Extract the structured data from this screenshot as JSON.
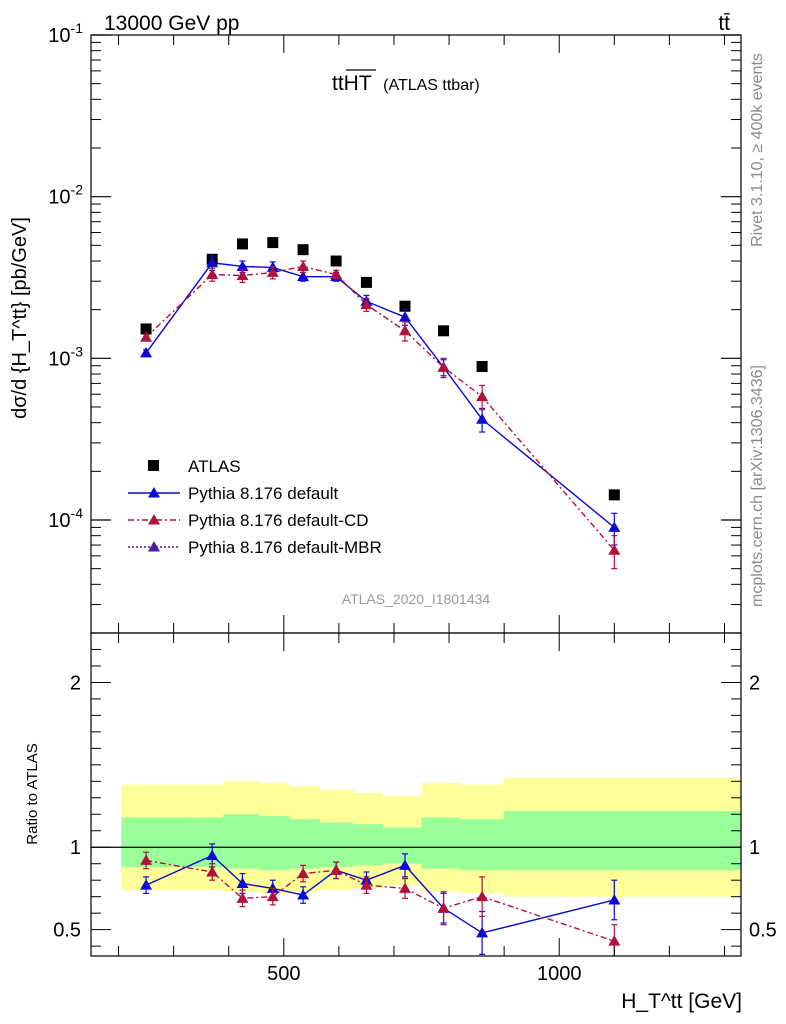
{
  "header": {
    "energy_label": "13000 GeV pp",
    "process_label": "tt̄",
    "plot_title": "ttHT",
    "plot_title_suffix": "(ATLAS ttbar)",
    "ylabel": "dσ/d {H_T^tt} [pb/GeV]",
    "ratio_ylabel": "Ratio to ATLAS",
    "xlabel": "H_T^tt [GeV]",
    "rivet_label": "Rivet 3.1.10, ≥ 400k events",
    "mcplots_label": "mcplots.cern.ch [arXiv:1306.3436]",
    "analysis_label": "ATLAS_2020_I1801434"
  },
  "colors": {
    "atlas": "#000000",
    "default": "#0a0ad2",
    "cd": "#b0123c",
    "mbr": "#4a1aa8",
    "band_outer": "#ffff99",
    "band_inner": "#99ff99"
  },
  "chart_data": [
    {
      "type": "scatter",
      "scale": "log",
      "xlim": [
        150,
        1330
      ],
      "ylim": [
        2e-05,
        0.1
      ],
      "y_ticks": [
        "10^-4",
        "10^-3",
        "10^-2",
        "10^-1"
      ],
      "legend_position": "middle-left",
      "series": [
        {
          "name": "ATLAS",
          "style": "square",
          "x": [
            250,
            370,
            425,
            480,
            535,
            595,
            650,
            720,
            790,
            860,
            1100
          ],
          "y": [
            0.00152,
            0.0041,
            0.0051,
            0.0052,
            0.0047,
            0.004,
            0.00295,
            0.0021,
            0.00148,
            0.00089,
            0.000143
          ]
        },
        {
          "name": "Pythia 8.176 default",
          "style": "solid",
          "x": [
            250,
            370,
            425,
            480,
            535,
            595,
            650,
            720,
            790,
            860,
            1100
          ],
          "y": [
            0.00108,
            0.0039,
            0.0037,
            0.00365,
            0.0032,
            0.0032,
            0.00225,
            0.0018,
            0.00088,
            0.00042,
            9e-05
          ],
          "err": [
            5e-05,
            0.0004,
            0.0003,
            0.0003,
            0.0002,
            0.0002,
            0.0002,
            0.0002,
            0.0001,
            7e-05,
            2e-05
          ]
        },
        {
          "name": "Pythia 8.176 default-CD",
          "style": "dashdot",
          "x": [
            250,
            370,
            425,
            480,
            535,
            595,
            650,
            720,
            790,
            860,
            1100
          ],
          "y": [
            0.00135,
            0.0033,
            0.00325,
            0.0034,
            0.0037,
            0.0033,
            0.00215,
            0.00148,
            0.00088,
            0.00058,
            6.5e-05
          ],
          "err": [
            6e-05,
            0.0003,
            0.0003,
            0.0003,
            0.0003,
            0.0002,
            0.0002,
            0.0002,
            0.00012,
            0.0001,
            1.5e-05
          ]
        },
        {
          "name": "Pythia 8.176 default-MBR",
          "style": "dotted",
          "x": [],
          "y": []
        }
      ]
    },
    {
      "type": "scatter",
      "ylim": [
        0.34,
        2.3
      ],
      "y_ticks": [
        0.5,
        1,
        2
      ],
      "x_ticks": [
        500,
        1000
      ],
      "bands": {
        "edges": [
          205,
          335,
          390,
          455,
          510,
          565,
          625,
          680,
          750,
          820,
          900,
          1330
        ],
        "outer_low": [
          0.74,
          0.74,
          0.73,
          0.72,
          0.73,
          0.74,
          0.75,
          0.77,
          0.73,
          0.72,
          0.7
        ],
        "outer_high": [
          1.38,
          1.38,
          1.4,
          1.39,
          1.37,
          1.35,
          1.33,
          1.31,
          1.39,
          1.38,
          1.42
        ],
        "inner_low": [
          0.88,
          0.88,
          0.87,
          0.86,
          0.87,
          0.88,
          0.89,
          0.9,
          0.87,
          0.86,
          0.86
        ],
        "inner_high": [
          1.18,
          1.18,
          1.2,
          1.19,
          1.17,
          1.15,
          1.14,
          1.12,
          1.18,
          1.17,
          1.22
        ]
      },
      "series": [
        {
          "name": "Pythia 8.176 default",
          "x": [
            250,
            370,
            425,
            480,
            535,
            595,
            650,
            720,
            790,
            860,
            1100
          ],
          "y": [
            0.77,
            0.95,
            0.78,
            0.75,
            0.71,
            0.86,
            0.8,
            0.89,
            0.63,
            0.48,
            0.68
          ],
          "err": [
            0.05,
            0.07,
            0.06,
            0.05,
            0.05,
            0.05,
            0.05,
            0.07,
            0.09,
            0.13,
            0.12
          ]
        },
        {
          "name": "Pythia 8.176 default-CD",
          "x": [
            250,
            370,
            425,
            480,
            535,
            595,
            650,
            720,
            790,
            860,
            1100
          ],
          "y": [
            0.92,
            0.85,
            0.69,
            0.7,
            0.84,
            0.86,
            0.77,
            0.75,
            0.63,
            0.7,
            0.43
          ],
          "err": [
            0.05,
            0.05,
            0.05,
            0.05,
            0.05,
            0.05,
            0.05,
            0.06,
            0.1,
            0.12,
            0.1
          ]
        }
      ]
    }
  ]
}
